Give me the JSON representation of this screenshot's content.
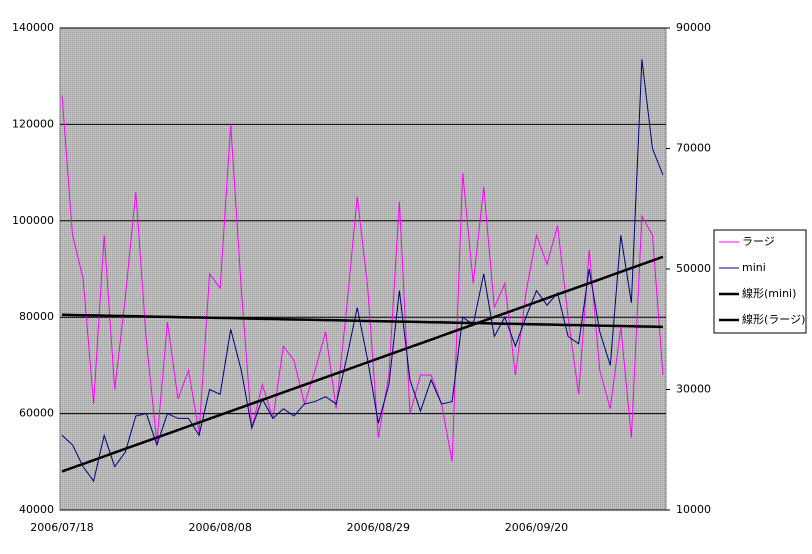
{
  "chart_data": {
    "type": "line",
    "categories": [
      "2006/07/18",
      null,
      null,
      null,
      null,
      null,
      null,
      null,
      null,
      null,
      null,
      null,
      null,
      null,
      null,
      "2006/08/08",
      null,
      null,
      null,
      null,
      null,
      null,
      null,
      null,
      null,
      null,
      null,
      null,
      null,
      null,
      "2006/08/29",
      null,
      null,
      null,
      null,
      null,
      null,
      null,
      null,
      null,
      null,
      null,
      null,
      null,
      null,
      "2006/09/20",
      null,
      null,
      null,
      null,
      null,
      null,
      null,
      null,
      null,
      null,
      null,
      null
    ],
    "ylim": [
      40000,
      140000
    ],
    "yticks": [
      40000,
      60000,
      80000,
      100000,
      120000,
      140000
    ],
    "y2lim": [
      10000,
      90000
    ],
    "y2ticks": [
      10000,
      30000,
      50000,
      70000,
      90000
    ],
    "grid": true,
    "legend": "right",
    "series": [
      {
        "name": "ラージ",
        "color": "#ff00ff",
        "width": 1,
        "values": [
          126000,
          97000,
          88000,
          62000,
          97000,
          65000,
          84000,
          106000,
          75000,
          54000,
          79000,
          63000,
          69000,
          56000,
          89000,
          86000,
          120000,
          86000,
          57000,
          66000,
          59000,
          74000,
          71000,
          62000,
          69000,
          77000,
          61000,
          82000,
          105000,
          86000,
          55000,
          68000,
          104000,
          60000,
          68000,
          68000,
          62000,
          50000,
          110000,
          87000,
          107000,
          82000,
          87000,
          68000,
          85000,
          97000,
          91000,
          99000,
          80000,
          64000,
          94000,
          69000,
          61000,
          78000,
          55000,
          101000,
          97000,
          68000
        ]
      },
      {
        "name": "mini",
        "color": "#000080",
        "width": 1,
        "axis": "y2",
        "values": [
          22400,
          20800,
          17200,
          14800,
          22400,
          17200,
          19600,
          25600,
          26000,
          20800,
          26000,
          25200,
          25200,
          22400,
          30000,
          29200,
          40000,
          33200,
          23600,
          28400,
          25200,
          26800,
          25600,
          27600,
          28000,
          28800,
          27600,
          35200,
          43600,
          34800,
          24400,
          30800,
          46400,
          31600,
          26400,
          31600,
          27600,
          28000,
          42000,
          40800,
          49200,
          38800,
          42000,
          37200,
          42000,
          46400,
          44000,
          46000,
          38800,
          37600,
          50000,
          39600,
          34000,
          55600,
          44400,
          84800,
          70000,
          65600
        ]
      },
      {
        "name": "線形(mini)",
        "color": "#000000",
        "width": 2.5,
        "axis": "y2",
        "values": [
          16400,
          17025,
          17650,
          18275,
          18900,
          19525,
          20150,
          20775,
          21400,
          22025,
          22650,
          23275,
          23900,
          24525,
          25150,
          25775,
          26400,
          27025,
          27650,
          28275,
          28900,
          29525,
          30150,
          30775,
          31400,
          32025,
          32650,
          33275,
          33900,
          34525,
          35150,
          35775,
          36400,
          37025,
          37650,
          38275,
          38900,
          39525,
          40150,
          40775,
          41400,
          42025,
          42650,
          43275,
          43900,
          44525,
          45150,
          45775,
          46400,
          47025,
          47650,
          48275,
          48900,
          49525,
          50150,
          50775,
          51400,
          52025
        ]
      },
      {
        "name": "線形(ラージ)",
        "color": "#000000",
        "width": 2.5,
        "values": [
          80500,
          80456,
          80412,
          80368,
          80324,
          80280,
          80236,
          80192,
          80148,
          80104,
          80060,
          80016,
          79972,
          79928,
          79884,
          79840,
          79796,
          79752,
          79708,
          79664,
          79620,
          79576,
          79532,
          79488,
          79444,
          79400,
          79356,
          79312,
          79268,
          79224,
          79180,
          79136,
          79092,
          79048,
          79004,
          78960,
          78916,
          78872,
          78828,
          78784,
          78740,
          78696,
          78652,
          78608,
          78564,
          78520,
          78476,
          78432,
          78388,
          78344,
          78300,
          78256,
          78212,
          78168,
          78124,
          78080,
          78036,
          77992
        ]
      }
    ]
  }
}
